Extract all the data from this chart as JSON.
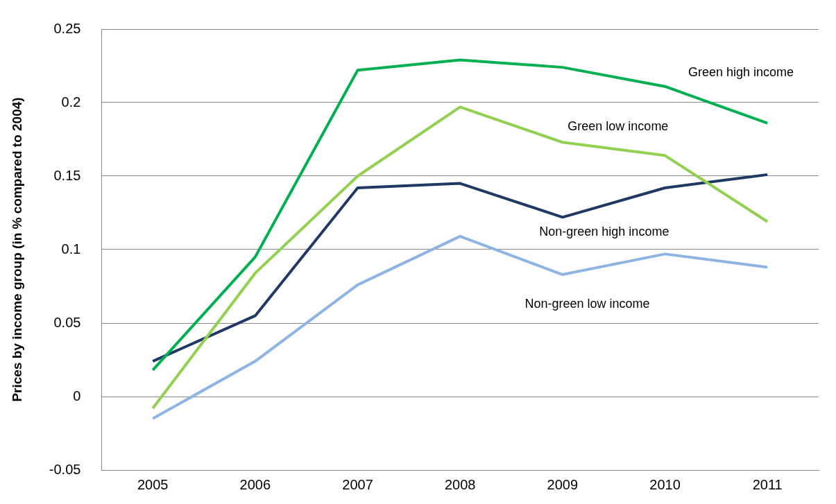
{
  "chart_data": {
    "type": "line",
    "ylabel": "Prices by income group (in % compared to 2004)",
    "categories": [
      "2005",
      "2006",
      "2007",
      "2008",
      "2009",
      "2010",
      "2011"
    ],
    "series": [
      {
        "name": "Green high income",
        "color": "#00b050",
        "values": [
          0.018,
          0.095,
          0.222,
          0.229,
          0.224,
          0.211,
          0.186
        ]
      },
      {
        "name": "Green low income",
        "color": "#92d050",
        "values": [
          -0.008,
          0.084,
          0.15,
          0.197,
          0.173,
          0.164,
          0.119
        ]
      },
      {
        "name": "Non-green high income",
        "color": "#1f3864",
        "values": [
          0.024,
          0.055,
          0.142,
          0.145,
          0.122,
          0.142,
          0.151
        ]
      },
      {
        "name": "Non-green low income",
        "color": "#8db4e2",
        "values": [
          -0.015,
          0.024,
          0.076,
          0.109,
          0.083,
          0.097,
          0.088
        ]
      }
    ],
    "ylim": [
      -0.05,
      0.25
    ],
    "yticks": [
      -0.05,
      0,
      0.05,
      0.1,
      0.15,
      0.2,
      0.25
    ],
    "grid": "y",
    "legend": false,
    "marker": "none",
    "line_style": "solid"
  }
}
